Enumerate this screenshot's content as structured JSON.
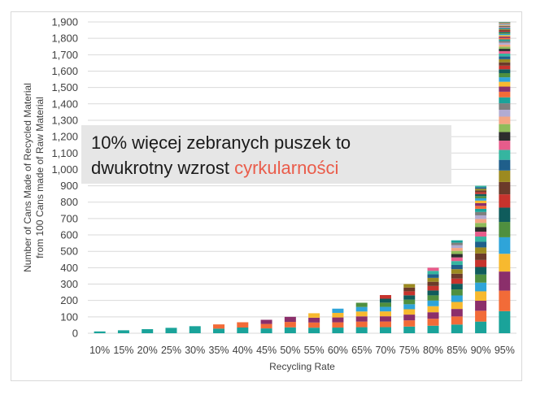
{
  "chart_data": {
    "type": "bar",
    "stacked": true,
    "categories": [
      "10%",
      "15%",
      "20%",
      "25%",
      "30%",
      "35%",
      "40%",
      "45%",
      "50%",
      "55%",
      "60%",
      "65%",
      "70%",
      "75%",
      "80%",
      "85%",
      "90%",
      "95%"
    ],
    "values": [
      11,
      18,
      25,
      33,
      43,
      54,
      67,
      82,
      100,
      122,
      150,
      186,
      233,
      300,
      400,
      567,
      900,
      1900
    ],
    "xlabel": "Recycling Rate",
    "ylabel_line1": "Number of Cans Made of Recycled Material",
    "ylabel_line2": "from 100 Cans made of Raw Material",
    "ylim": [
      0,
      1900
    ],
    "yticks": [
      0,
      100,
      200,
      300,
      400,
      500,
      600,
      700,
      800,
      900,
      1000,
      1100,
      1200,
      1300,
      1400,
      1500,
      1600,
      1700,
      1800,
      1900
    ],
    "ytick_labels": [
      "0",
      "100",
      "200",
      "300",
      "400",
      "500",
      "600",
      "700",
      "800",
      "900",
      "1,000",
      "1,100",
      "1,200",
      "1,300",
      "1,400",
      "1,500",
      "1,600",
      "1,700",
      "1,800",
      "1,900"
    ],
    "grid": true,
    "segment_colors": [
      "#1aa39a",
      "#f26b38",
      "#8b2f6b",
      "#f7b92f",
      "#2fa4d9",
      "#4f8f3f",
      "#0f5c5c",
      "#c7332d",
      "#6b3a2a",
      "#9c8a20",
      "#1f5f8b",
      "#35b5a0",
      "#e75c8b",
      "#2d2d2d",
      "#8fbc5a",
      "#f4a582",
      "#b2abd2",
      "#7f7f7f"
    ]
  },
  "callout": {
    "line1": "10% więcej zebranych puszek to",
    "line2_plain": "dwukrotny wzrost ",
    "line2_highlight": "cyrkularności",
    "background": "#e6e6e6",
    "highlight_color": "#ea5c4a"
  }
}
